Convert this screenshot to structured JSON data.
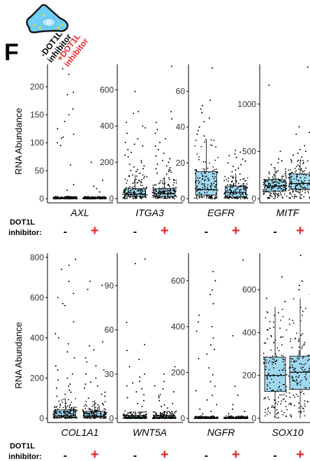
{
  "panel_letter": "F",
  "header": {
    "cell_icon": "cell-icon",
    "cell_color": "#6ecff6",
    "cell_outline": "#1a1a1a",
    "label_minus_line1": "-DOT1L",
    "label_minus_line2": "inhibitor",
    "label_plus_line1": "+DOT1L",
    "label_plus_line2": "inhibitor",
    "plus_color": "#e8262d"
  },
  "ylabel": "RNA Abundance",
  "condition_label_line1": "DOT1L",
  "condition_label_line2": "inhibitor:",
  "minus_symbol": "-",
  "plus_symbol": "+",
  "colors": {
    "box_fill": "#9fd8ee",
    "points": "#000000",
    "axis": "#000000",
    "plus": "#e8262d"
  },
  "chart_data": [
    {
      "type": "box",
      "gene": "AXL",
      "ylim": [
        0,
        240
      ],
      "yticks": [
        0,
        50,
        100,
        150,
        200
      ],
      "groups": [
        {
          "condition": "-",
          "q1": 0,
          "median": 1,
          "q3": 2,
          "whisker_low": 0,
          "whisker_high": 4,
          "outliers": [
            232,
            222,
            190,
            186,
            160,
            150,
            138,
            125,
            115,
            110,
            108,
            100,
            95,
            60,
            25,
            15
          ]
        },
        {
          "condition": "+",
          "q1": 0,
          "median": 1,
          "q3": 2,
          "whisker_low": 0,
          "whisker_high": 4,
          "outliers": [
            65,
            33,
            22,
            18,
            12
          ]
        }
      ]
    },
    {
      "type": "box",
      "gene": "ITGA3",
      "ylim": [
        0,
        740
      ],
      "yticks": [
        0,
        200,
        400,
        600
      ],
      "groups": [
        {
          "condition": "-",
          "q1": 12,
          "median": 25,
          "q3": 55,
          "whisker_low": 0,
          "whisker_high": 130,
          "outliers": [
            590,
            480,
            470,
            420,
            400,
            390,
            360,
            330,
            310,
            300,
            290,
            270,
            255,
            240,
            230,
            210,
            200,
            190,
            180,
            175,
            165,
            160,
            155,
            150,
            140
          ]
        },
        {
          "condition": "+",
          "q1": 12,
          "median": 28,
          "q3": 55,
          "whisker_low": 0,
          "whisker_high": 120,
          "outliers": [
            730,
            480,
            440,
            420,
            380,
            360,
            330,
            310,
            290,
            270,
            250,
            235,
            220,
            210,
            200,
            190,
            180,
            170,
            165,
            160,
            155,
            150,
            145,
            140,
            135
          ]
        }
      ]
    },
    {
      "type": "box",
      "gene": "EGFR",
      "ylim": [
        0,
        75
      ],
      "yticks": [
        0,
        20,
        40,
        60
      ],
      "groups": [
        {
          "condition": "-",
          "q1": 2,
          "median": 5,
          "q3": 15,
          "whisker_low": 0,
          "whisker_high": 33,
          "outliers": [
            73,
            55,
            52,
            50,
            48,
            45,
            43,
            40,
            38,
            36,
            35
          ]
        },
        {
          "condition": "+",
          "q1": 1,
          "median": 3.5,
          "q3": 7,
          "whisker_low": 0,
          "whisker_high": 14,
          "outliers": [
            27,
            26,
            25,
            24,
            23,
            22,
            21,
            20,
            19,
            18,
            17,
            16,
            15
          ]
        }
      ]
    },
    {
      "type": "box",
      "gene": "MITF",
      "ylim": [
        0,
        1420
      ],
      "yticks": [
        0,
        500,
        1000
      ],
      "groups": [
        {
          "condition": "-",
          "q1": 80,
          "median": 135,
          "q3": 200,
          "whisker_low": 0,
          "whisker_high": 330,
          "outliers": [
            1200,
            500,
            420,
            400,
            380,
            360
          ]
        },
        {
          "condition": "+",
          "q1": 100,
          "median": 160,
          "q3": 260,
          "whisker_low": 0,
          "whisker_high": 420,
          "outliers": [
            1390,
            760,
            700,
            680,
            560,
            520,
            500,
            480,
            460,
            440
          ]
        }
      ]
    },
    {
      "type": "box",
      "gene": "COL1A1",
      "ylim": [
        0,
        820
      ],
      "yticks": [
        0,
        200,
        400,
        600,
        800
      ],
      "groups": [
        {
          "condition": "-",
          "q1": 5,
          "median": 12,
          "q3": 42,
          "whisker_low": 0,
          "whisker_high": 100,
          "outliers": [
            790,
            760,
            740,
            680,
            620,
            600,
            570,
            560,
            480,
            420,
            400,
            370,
            330,
            300,
            260,
            240,
            220,
            200,
            190,
            170,
            160,
            150,
            140,
            130,
            120,
            110
          ]
        },
        {
          "condition": "+",
          "q1": 4,
          "median": 10,
          "q3": 35,
          "whisker_low": 0,
          "whisker_high": 90,
          "outliers": [
            680,
            660,
            640,
            380,
            360,
            340,
            300,
            280,
            260,
            240,
            220,
            200,
            180,
            170,
            160,
            150,
            130,
            120,
            110,
            100
          ]
        }
      ]
    },
    {
      "type": "box",
      "gene": "WNT5A",
      "ylim": [
        0,
        112
      ],
      "yticks": [
        0,
        30,
        60,
        90
      ],
      "groups": [
        {
          "condition": "-",
          "q1": 0,
          "median": 0.5,
          "q3": 2,
          "whisker_low": 0,
          "whisker_high": 5,
          "outliers": [
            108,
            105,
            65,
            50,
            46,
            40,
            35,
            30,
            28,
            25,
            24,
            22,
            20,
            18,
            16,
            14,
            12,
            10,
            8
          ]
        },
        {
          "condition": "+",
          "q1": 0,
          "median": 0.5,
          "q3": 2,
          "whisker_low": 0,
          "whisker_high": 5,
          "outliers": [
            35,
            30,
            25,
            22,
            20,
            18,
            16,
            15,
            14,
            12,
            10,
            9,
            8,
            7
          ]
        }
      ]
    },
    {
      "type": "box",
      "gene": "NGFR",
      "ylim": [
        0,
        720
      ],
      "yticks": [
        0,
        200,
        400,
        600
      ],
      "groups": [
        {
          "condition": "-",
          "q1": 0,
          "median": 1,
          "q3": 4,
          "whisker_low": 0,
          "whisker_high": 10,
          "outliers": [
            640,
            600,
            560,
            540,
            500,
            450,
            420,
            400,
            380,
            350,
            320,
            300,
            280,
            260,
            220,
            190,
            160,
            140,
            120,
            100,
            80,
            60,
            40,
            30,
            20
          ]
        },
        {
          "condition": "+",
          "q1": 0,
          "median": 1,
          "q3": 4,
          "whisker_low": 0,
          "whisker_high": 10,
          "outliers": [
            690,
            360,
            140,
            100,
            60,
            40,
            30,
            20
          ]
        }
      ]
    },
    {
      "type": "box",
      "gene": "SOX10",
      "ylim": [
        0,
        770
      ],
      "yticks": [
        0,
        200,
        400,
        600
      ],
      "groups": [
        {
          "condition": "-",
          "q1": 125,
          "median": 200,
          "q3": 285,
          "whisker_low": 0,
          "whisker_high": 520,
          "outliers": [
            660,
            560,
            545
          ]
        },
        {
          "condition": "+",
          "q1": 135,
          "median": 215,
          "q3": 290,
          "whisker_low": 0,
          "whisker_high": 560,
          "outliers": [
            760,
            640,
            620,
            600,
            580
          ]
        }
      ]
    }
  ]
}
